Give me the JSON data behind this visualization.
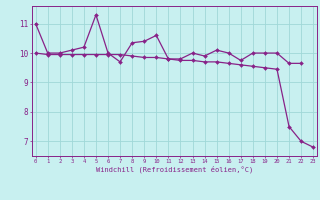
{
  "xlabel": "Windchill (Refroidissement éolien,°C)",
  "x": [
    0,
    1,
    2,
    3,
    4,
    5,
    6,
    7,
    8,
    9,
    10,
    11,
    12,
    13,
    14,
    15,
    16,
    17,
    18,
    19,
    20,
    21,
    22,
    23
  ],
  "line1": [
    11.0,
    10.0,
    10.0,
    10.1,
    10.2,
    11.3,
    10.0,
    9.7,
    10.35,
    10.4,
    10.6,
    9.8,
    9.8,
    10.0,
    9.9,
    10.1,
    10.0,
    9.75,
    10.0,
    10.0,
    10.0,
    9.65,
    9.65,
    null
  ],
  "line2": [
    10.0,
    9.95,
    9.95,
    9.95,
    9.95,
    9.95,
    9.95,
    9.95,
    9.9,
    9.85,
    9.85,
    9.8,
    9.75,
    9.75,
    9.7,
    9.7,
    9.65,
    9.6,
    9.55,
    9.5,
    9.45,
    7.5,
    7.0,
    6.8
  ],
  "line_color": "#882288",
  "bg_color": "#c8f0f0",
  "grid_color": "#a0d8d8",
  "ylim": [
    6.5,
    11.6
  ],
  "xlim": [
    -0.3,
    23.3
  ],
  "yticks": [
    7,
    8,
    9,
    10,
    11
  ],
  "xticks": [
    0,
    1,
    2,
    3,
    4,
    5,
    6,
    7,
    8,
    9,
    10,
    11,
    12,
    13,
    14,
    15,
    16,
    17,
    18,
    19,
    20,
    21,
    22,
    23
  ]
}
